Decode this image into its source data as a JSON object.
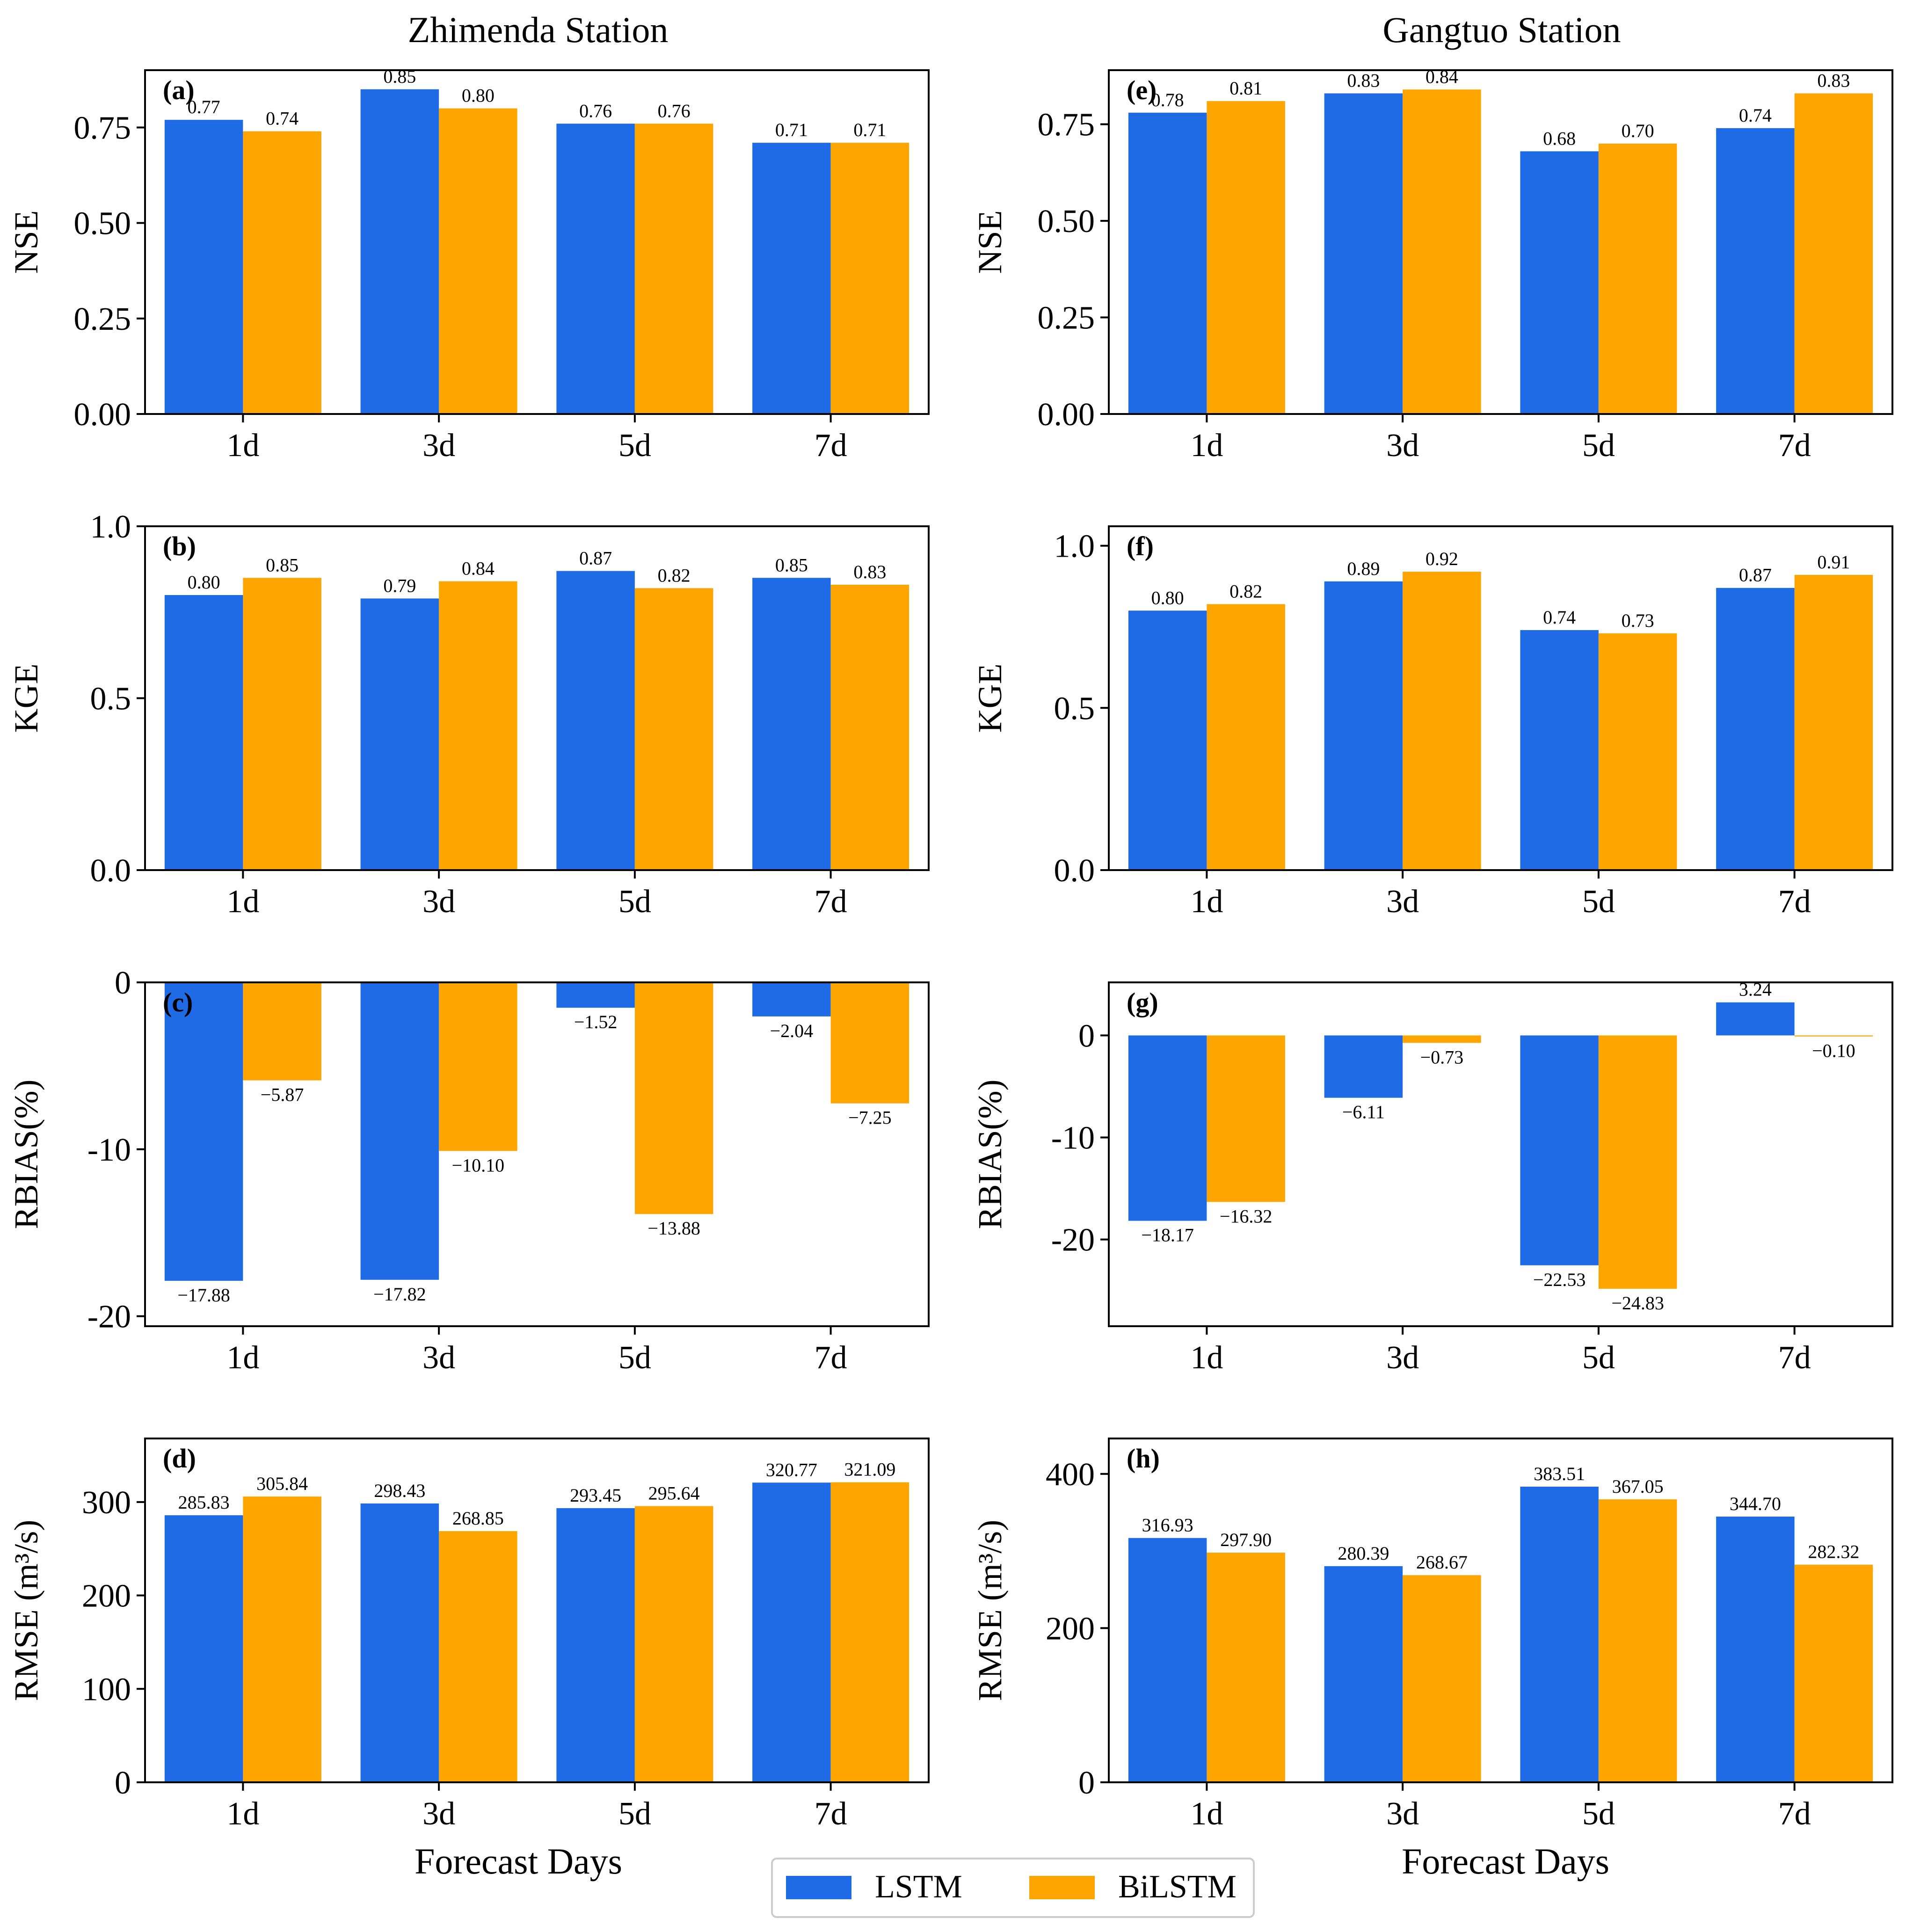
{
  "colors": {
    "lstm": "#1f6be6",
    "bilstm": "#ffa500",
    "axis": "#000000"
  },
  "legend": {
    "items": [
      "LSTM",
      "BiLSTM"
    ]
  },
  "column_titles": [
    "Zhimenda Station",
    "Gangtuo Station"
  ],
  "xlabel": "Forecast Days",
  "chart_data": [
    {
      "id": "a",
      "panel_label": "(a)",
      "station": "Zhimenda Station",
      "type": "bar",
      "categories": [
        "1d",
        "3d",
        "5d",
        "7d"
      ],
      "ylabel": "NSE",
      "ylim": [
        0,
        0.9
      ],
      "yticks": [
        0,
        0.25,
        0.5,
        0.75
      ],
      "ytick_labels": [
        "0.00",
        "0.25",
        "0.50",
        "0.75"
      ],
      "series": [
        {
          "name": "LSTM",
          "values": [
            0.77,
            0.85,
            0.76,
            0.71
          ],
          "labels": [
            "0.77",
            "0.85",
            "0.76",
            "0.71"
          ]
        },
        {
          "name": "BiLSTM",
          "values": [
            0.74,
            0.8,
            0.76,
            0.71
          ],
          "labels": [
            "0.74",
            "0.80",
            "0.76",
            "0.71"
          ]
        }
      ]
    },
    {
      "id": "b",
      "panel_label": "(b)",
      "station": "Zhimenda Station",
      "type": "bar",
      "categories": [
        "1d",
        "3d",
        "5d",
        "7d"
      ],
      "ylabel": "KGE",
      "ylim": [
        0,
        1.0
      ],
      "yticks": [
        0,
        0.5,
        1.0
      ],
      "ytick_labels": [
        "0.0",
        "0.5",
        "1.0"
      ],
      "series": [
        {
          "name": "LSTM",
          "values": [
            0.8,
            0.79,
            0.87,
            0.85
          ],
          "labels": [
            "0.80",
            "0.79",
            "0.87",
            "0.85"
          ]
        },
        {
          "name": "BiLSTM",
          "values": [
            0.85,
            0.84,
            0.82,
            0.83
          ],
          "labels": [
            "0.85",
            "0.84",
            "0.82",
            "0.83"
          ]
        }
      ]
    },
    {
      "id": "c",
      "panel_label": "(c)",
      "station": "Zhimenda Station",
      "type": "bar",
      "categories": [
        "1d",
        "3d",
        "5d",
        "7d"
      ],
      "ylabel": "RBIAS(%)",
      "ylim": [
        -20.6,
        0
      ],
      "yticks": [
        0,
        -10,
        -20
      ],
      "ytick_labels": [
        "0",
        "-10",
        "-20"
      ],
      "series": [
        {
          "name": "LSTM",
          "values": [
            -17.88,
            -17.82,
            -1.52,
            -2.04
          ],
          "labels": [
            "−17.88",
            "−17.82",
            "−1.52",
            "−2.04"
          ]
        },
        {
          "name": "BiLSTM",
          "values": [
            -5.87,
            -10.1,
            -13.88,
            -7.25
          ],
          "labels": [
            "−5.87",
            "−10.10",
            "−13.88",
            "−7.25"
          ]
        }
      ]
    },
    {
      "id": "d",
      "panel_label": "(d)",
      "station": "Zhimenda Station",
      "type": "bar",
      "categories": [
        "1d",
        "3d",
        "5d",
        "7d"
      ],
      "ylabel": "RMSE (m³/s)",
      "ylim": [
        0,
        368
      ],
      "yticks": [
        0,
        100,
        200,
        300
      ],
      "ytick_labels": [
        "0",
        "100",
        "200",
        "300"
      ],
      "series": [
        {
          "name": "LSTM",
          "values": [
            285.83,
            298.43,
            293.45,
            320.77
          ],
          "labels": [
            "285.83",
            "298.43",
            "293.45",
            "320.77"
          ]
        },
        {
          "name": "BiLSTM",
          "values": [
            305.84,
            268.85,
            295.64,
            321.09
          ],
          "labels": [
            "305.84",
            "268.85",
            "295.64",
            "321.09"
          ]
        }
      ]
    },
    {
      "id": "e",
      "panel_label": "(e)",
      "station": "Gangtuo Station",
      "type": "bar",
      "categories": [
        "1d",
        "3d",
        "5d",
        "7d"
      ],
      "ylabel": "NSE",
      "ylim": [
        0,
        0.89
      ],
      "yticks": [
        0,
        0.25,
        0.5,
        0.75
      ],
      "ytick_labels": [
        "0.00",
        "0.25",
        "0.50",
        "0.75"
      ],
      "series": [
        {
          "name": "LSTM",
          "values": [
            0.78,
            0.83,
            0.68,
            0.74
          ],
          "labels": [
            "0.78",
            "0.83",
            "0.68",
            "0.74"
          ]
        },
        {
          "name": "BiLSTM",
          "values": [
            0.81,
            0.84,
            0.7,
            0.83
          ],
          "labels": [
            "0.81",
            "0.84",
            "0.70",
            "0.83"
          ]
        }
      ]
    },
    {
      "id": "f",
      "panel_label": "(f)",
      "station": "Gangtuo Station",
      "type": "bar",
      "categories": [
        "1d",
        "3d",
        "5d",
        "7d"
      ],
      "ylabel": "KGE",
      "ylim": [
        0,
        1.06
      ],
      "yticks": [
        0,
        0.5,
        1.0
      ],
      "ytick_labels": [
        "0.0",
        "0.5",
        "1.0"
      ],
      "series": [
        {
          "name": "LSTM",
          "values": [
            0.8,
            0.89,
            0.74,
            0.87
          ],
          "labels": [
            "0.80",
            "0.89",
            "0.74",
            "0.87"
          ]
        },
        {
          "name": "BiLSTM",
          "values": [
            0.82,
            0.92,
            0.73,
            0.91
          ],
          "labels": [
            "0.82",
            "0.92",
            "0.73",
            "0.91"
          ]
        }
      ]
    },
    {
      "id": "g",
      "panel_label": "(g)",
      "station": "Gangtuo Station",
      "type": "bar",
      "categories": [
        "1d",
        "3d",
        "5d",
        "7d"
      ],
      "ylabel": "RBIAS(%)",
      "ylim": [
        -28.5,
        5.2
      ],
      "yticks": [
        0,
        -10,
        -20
      ],
      "ytick_labels": [
        "0",
        "-10",
        "-20"
      ],
      "series": [
        {
          "name": "LSTM",
          "values": [
            -18.17,
            -6.11,
            -22.53,
            3.24
          ],
          "labels": [
            "−18.17",
            "−6.11",
            "−22.53",
            "3.24"
          ]
        },
        {
          "name": "BiLSTM",
          "values": [
            -16.32,
            -0.73,
            -24.83,
            -0.1
          ],
          "labels": [
            "−16.32",
            "−0.73",
            "−24.83",
            "−0.10"
          ]
        }
      ]
    },
    {
      "id": "h",
      "panel_label": "(h)",
      "station": "Gangtuo Station",
      "type": "bar",
      "categories": [
        "1d",
        "3d",
        "5d",
        "7d"
      ],
      "ylabel": "RMSE (m³/s)",
      "ylim": [
        0,
        446
      ],
      "yticks": [
        0,
        200,
        400
      ],
      "ytick_labels": [
        "0",
        "200",
        "400"
      ],
      "series": [
        {
          "name": "LSTM",
          "values": [
            316.93,
            280.39,
            383.51,
            344.7
          ],
          "labels": [
            "316.93",
            "280.39",
            "383.51",
            "344.70"
          ]
        },
        {
          "name": "BiLSTM",
          "values": [
            297.9,
            268.67,
            367.05,
            282.32
          ],
          "labels": [
            "297.90",
            "268.67",
            "367.05",
            "282.32"
          ]
        }
      ]
    }
  ]
}
